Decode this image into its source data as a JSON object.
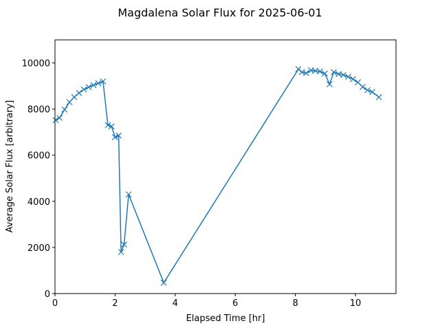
{
  "chart_data": {
    "type": "line",
    "title": "Magdalena Solar Flux for 2025-06-01",
    "xlabel": "Elapsed Time [hr]",
    "ylabel": "Average Solar Flux [arbitrary]",
    "xlim": [
      0,
      11.35
    ],
    "ylim": [
      0,
      11000
    ],
    "xticks": [
      0,
      2,
      4,
      6,
      8,
      10
    ],
    "yticks": [
      0,
      2000,
      4000,
      6000,
      8000,
      10000
    ],
    "grid": false,
    "marker": "x",
    "color": "#1f77b4",
    "series": [
      {
        "points": [
          [
            0.02,
            7520
          ],
          [
            0.15,
            7620
          ],
          [
            0.32,
            7980
          ],
          [
            0.48,
            8300
          ],
          [
            0.64,
            8520
          ],
          [
            0.8,
            8700
          ],
          [
            0.96,
            8850
          ],
          [
            1.12,
            8950
          ],
          [
            1.28,
            9040
          ],
          [
            1.44,
            9120
          ],
          [
            1.6,
            9200
          ],
          [
            1.76,
            7300
          ],
          [
            1.88,
            7250
          ],
          [
            2.0,
            6780
          ],
          [
            2.12,
            6850
          ],
          [
            2.2,
            1800
          ],
          [
            2.3,
            2130
          ],
          [
            2.45,
            4300
          ],
          [
            3.62,
            470
          ],
          [
            8.1,
            9730
          ],
          [
            8.22,
            9600
          ],
          [
            8.36,
            9560
          ],
          [
            8.52,
            9680
          ],
          [
            8.66,
            9660
          ],
          [
            8.82,
            9630
          ],
          [
            8.98,
            9540
          ],
          [
            9.14,
            9080
          ],
          [
            9.28,
            9600
          ],
          [
            9.44,
            9520
          ],
          [
            9.6,
            9480
          ],
          [
            9.76,
            9400
          ],
          [
            9.92,
            9300
          ],
          [
            10.08,
            9160
          ],
          [
            10.24,
            8960
          ],
          [
            10.4,
            8820
          ],
          [
            10.56,
            8740
          ],
          [
            10.78,
            8520
          ]
        ]
      }
    ]
  }
}
